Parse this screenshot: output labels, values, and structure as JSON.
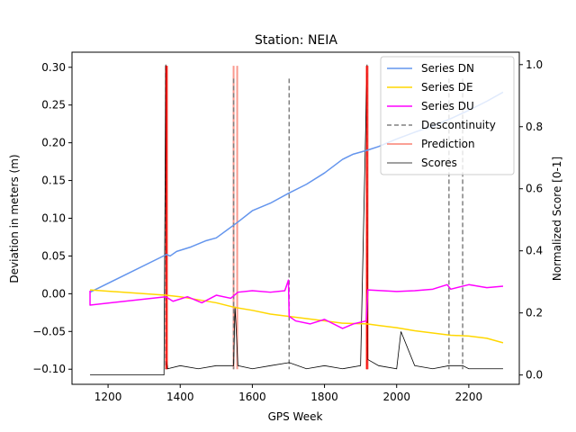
{
  "chart_data": {
    "type": "line",
    "title": "Station: NEIA",
    "xlabel": "GPS Week",
    "ylabel": "Deviation in meters (m)",
    "ylabel_right": "Normalized Score [0-1]",
    "xlim": [
      1100,
      2340
    ],
    "ylim": [
      -0.12,
      0.32
    ],
    "ylim_right": [
      -0.03,
      1.04
    ],
    "xticks": [
      1200,
      1400,
      1600,
      1800,
      2000,
      2200
    ],
    "yticks": [
      -0.1,
      -0.05,
      0.0,
      0.05,
      0.1,
      0.15,
      0.2,
      0.25,
      0.3
    ],
    "yticks_labels": [
      "−0.10",
      "−0.05",
      "0.00",
      "0.05",
      "0.10",
      "0.15",
      "0.20",
      "0.25",
      "0.30"
    ],
    "yticks_right": [
      0.0,
      0.2,
      0.4,
      0.6,
      0.8,
      1.0
    ],
    "yticks_right_labels": [
      "0.0",
      "0.2",
      "0.4",
      "0.6",
      "0.8",
      "1.0"
    ],
    "legend_position": "top-right",
    "series": [
      {
        "name": "Series DN",
        "color": "#6495ED",
        "style": "solid",
        "x": [
          1150,
          1362,
          1372,
          1390,
          1430,
          1470,
          1500,
          1540,
          1560,
          1600,
          1650,
          1700,
          1750,
          1800,
          1850,
          1880,
          1918,
          1950,
          2000,
          2050,
          2100,
          2150,
          2200,
          2250,
          2295
        ],
        "y": [
          0.002,
          0.052,
          0.05,
          0.056,
          0.062,
          0.07,
          0.074,
          0.088,
          0.095,
          0.11,
          0.12,
          0.133,
          0.145,
          0.16,
          0.178,
          0.185,
          0.19,
          0.195,
          0.205,
          0.214,
          0.222,
          0.232,
          0.243,
          0.255,
          0.267
        ]
      },
      {
        "name": "Series DE",
        "color": "#FFD700",
        "style": "solid",
        "x": [
          1150,
          1360,
          1400,
          1450,
          1500,
          1550,
          1600,
          1650,
          1700,
          1750,
          1800,
          1850,
          1918,
          1950,
          2000,
          2050,
          2100,
          2150,
          2200,
          2250,
          2295
        ],
        "y": [
          0.005,
          -0.002,
          -0.004,
          -0.008,
          -0.012,
          -0.018,
          -0.022,
          -0.027,
          -0.03,
          -0.033,
          -0.036,
          -0.039,
          -0.04,
          -0.042,
          -0.045,
          -0.049,
          -0.052,
          -0.055,
          -0.056,
          -0.059,
          -0.065
        ]
      },
      {
        "name": "Series DU",
        "color": "#FF00FF",
        "style": "solid",
        "x": [
          1150,
          1150,
          1360,
          1380,
          1420,
          1460,
          1500,
          1540,
          1560,
          1600,
          1650,
          1690,
          1700,
          1702,
          1720,
          1760,
          1800,
          1850,
          1880,
          1916,
          1920,
          1960,
          2000,
          2050,
          2100,
          2140,
          2150,
          2200,
          2250,
          2295
        ],
        "y": [
          0.004,
          -0.015,
          -0.004,
          -0.01,
          -0.004,
          -0.012,
          -0.002,
          -0.006,
          0.002,
          0.004,
          0.002,
          0.004,
          0.018,
          -0.03,
          -0.036,
          -0.04,
          -0.034,
          -0.046,
          -0.04,
          -0.036,
          0.005,
          0.004,
          0.003,
          0.004,
          0.006,
          0.012,
          0.006,
          0.012,
          0.008,
          0.01
        ]
      },
      {
        "name": "Descontinuity",
        "color": "#808080",
        "style": "dashed",
        "x": [
          1360,
          1548,
          1702,
          1918,
          2145,
          2183
        ]
      },
      {
        "name": "Prediction",
        "color": "#FA8072",
        "style": "solid",
        "x": [
          1360,
          1364,
          1548,
          1558,
          1916,
          1920
        ]
      },
      {
        "name": "Scores",
        "color": "#000000",
        "style": "solid",
        "x": [
          1150,
          1355,
          1360,
          1362,
          1365,
          1400,
          1450,
          1500,
          1548,
          1552,
          1560,
          1600,
          1650,
          1702,
          1750,
          1800,
          1850,
          1900,
          1918,
          1920,
          1950,
          2000,
          2012,
          2050,
          2100,
          2145,
          2183,
          2200,
          2250,
          2295
        ],
        "y": [
          0.0,
          0.0,
          1.0,
          0.05,
          0.02,
          0.03,
          0.02,
          0.03,
          0.03,
          0.22,
          0.03,
          0.02,
          0.03,
          0.04,
          0.02,
          0.03,
          0.02,
          0.03,
          1.0,
          0.05,
          0.03,
          0.02,
          0.14,
          0.03,
          0.02,
          0.03,
          0.03,
          0.02,
          0.02,
          0.02
        ]
      }
    ]
  }
}
